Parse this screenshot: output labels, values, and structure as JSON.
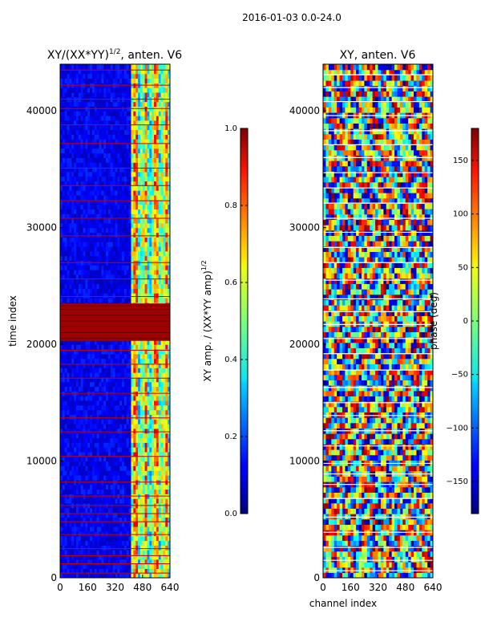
{
  "figure": {
    "suptitle": "2016-01-03 0.0-24.0"
  },
  "chart_data": [
    {
      "type": "heatmap",
      "title": "XY/(XX*YY)",
      "title_exponent": "1/2",
      "title_suffix": ", anten. V6",
      "xlabel": "",
      "ylabel": "time index",
      "x_ticks": [
        0,
        160,
        320,
        480,
        640
      ],
      "y_ticks": [
        0,
        10000,
        20000,
        30000,
        40000
      ],
      "xlim": [
        0,
        640
      ],
      "ylim": [
        0,
        44000
      ],
      "colormap": "jet",
      "background_value": 0.05,
      "active_channel_range": [
        410,
        640
      ],
      "saturated_rows": [
        20500,
        21000,
        21500,
        22000,
        22500,
        23000,
        23300
      ],
      "flag_line_rows": [
        400,
        1200,
        1900,
        2500,
        3700,
        4800,
        5500,
        6200,
        7000,
        8200,
        10400,
        12500,
        13700,
        15800,
        17100,
        18300,
        19500,
        24100,
        25600,
        27000,
        29300,
        30800,
        32300,
        33600,
        35100,
        37200,
        38800,
        40200,
        41000,
        42200,
        43500
      ],
      "colorbar": {
        "label": "XY amp. / (XX*YY amp)",
        "label_exponent": "1/2",
        "min": 0.0,
        "max": 1.0,
        "ticks": [
          "0.0",
          "0.2",
          "0.4",
          "0.6",
          "0.8",
          "1.0"
        ]
      }
    },
    {
      "type": "heatmap",
      "title": "XY, anten. V6",
      "xlabel": "channel index",
      "ylabel": "",
      "x_ticks": [
        0,
        160,
        320,
        480,
        640
      ],
      "y_ticks": [
        0,
        10000,
        20000,
        30000,
        40000
      ],
      "xlim": [
        0,
        640
      ],
      "ylim": [
        0,
        44000
      ],
      "colormap": "jet",
      "flag_line_rows": [
        600,
        1500,
        2600,
        3900,
        5200,
        6800,
        8000,
        8900,
        9800,
        11300,
        12600,
        13900,
        15000,
        16300,
        17800,
        19200,
        20500,
        21700,
        22800,
        23900,
        25500,
        27000,
        28300,
        29600,
        30800,
        32100,
        33400,
        34700,
        36000,
        37100,
        38300,
        39600,
        40800,
        42000,
        43100
      ],
      "colorbar": {
        "label": "phase (deg)",
        "min": -180,
        "max": 180,
        "ticks": [
          "150",
          "100",
          "50",
          "0",
          "−50",
          "−100",
          "−150"
        ]
      }
    }
  ]
}
